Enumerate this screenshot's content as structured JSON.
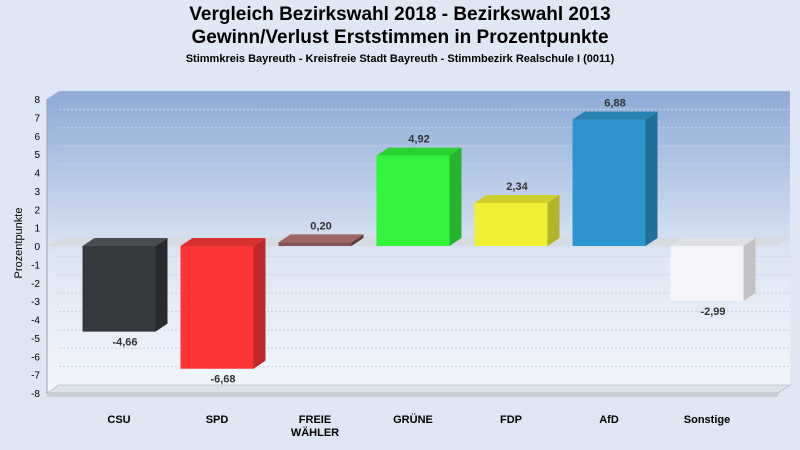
{
  "chart_data": {
    "type": "bar",
    "title": "Vergleich Bezirkswahl 2018 - Bezirkswahl 2013",
    "subtitle": "Gewinn/Verlust Erststimmen in Prozentpunkte",
    "subsubtitle": "Stimmkreis Bayreuth - Kreisfreie Stadt Bayreuth - Stimmbezirk Realschule I (0011)",
    "ylabel": "Prozentpunkte",
    "xlabel": "",
    "ylim": [
      -8,
      8
    ],
    "ticks": [
      "8",
      "7",
      "6",
      "5",
      "4",
      "3",
      "2",
      "1",
      "0",
      "-1",
      "-2",
      "-3",
      "-4",
      "-5",
      "-6",
      "-7",
      "-8"
    ],
    "categories": [
      [
        "CSU"
      ],
      [
        "SPD"
      ],
      [
        "FREIE",
        "WÄHLER"
      ],
      [
        "GRÜNE"
      ],
      [
        "FDP"
      ],
      [
        "AfD"
      ],
      [
        "Sonstige"
      ]
    ],
    "values": [
      -4.66,
      -6.68,
      0.2,
      4.92,
      2.34,
      6.88,
      -2.99
    ],
    "value_labels": [
      "-4,66",
      "-6,68",
      "0,20",
      "4,92",
      "2,34",
      "6,88",
      "-2,99"
    ],
    "colors": [
      "#35383c",
      "#fb3535",
      "#845252",
      "#33f33c",
      "#efef35",
      "#2e94d0",
      "#f4f5f9"
    ],
    "side_colors": [
      "#27292c",
      "#bf2929",
      "#613b3b",
      "#26b52c",
      "#b3b328",
      "#226e9b",
      "#c2c2c5"
    ],
    "top_colors": [
      "#4a4d52",
      "#d93030",
      "#9e6565",
      "#2ad231",
      "#cfcf2c",
      "#2880b5",
      "#e0e1e5"
    ],
    "grid": true,
    "legend": "none"
  }
}
